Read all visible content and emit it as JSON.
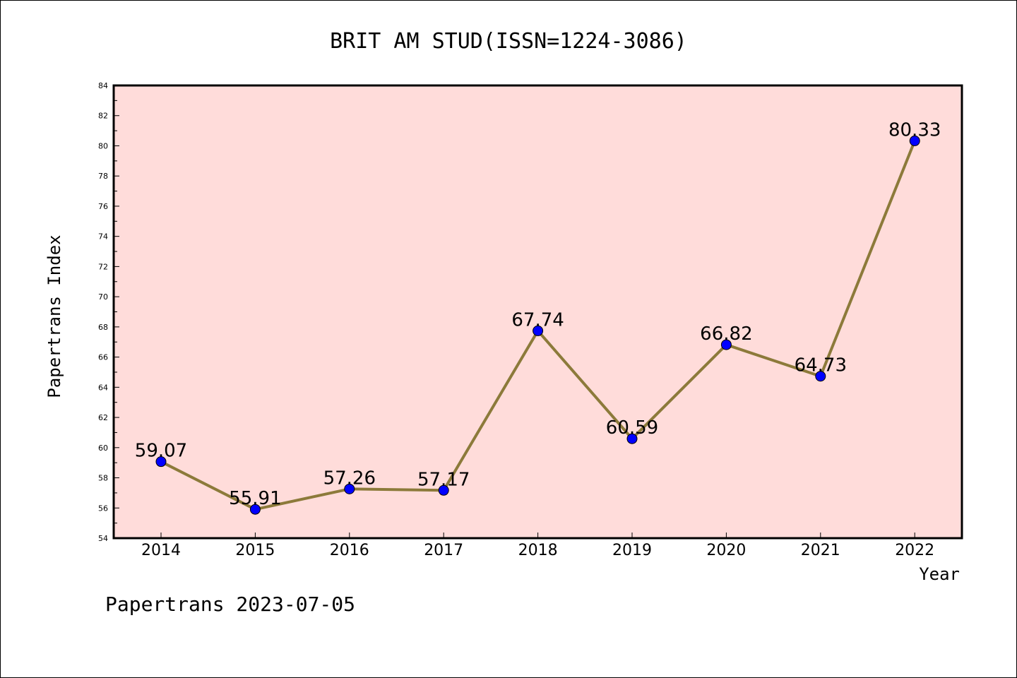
{
  "chart_data": {
    "type": "line",
    "title": "BRIT AM STUD(ISSN=1224-3086)",
    "xlabel": "Year",
    "ylabel": "Papertrans Index",
    "categories": [
      "2014",
      "2015",
      "2016",
      "2017",
      "2018",
      "2019",
      "2020",
      "2021",
      "2022"
    ],
    "values": [
      59.07,
      55.91,
      57.26,
      57.17,
      67.74,
      60.59,
      66.82,
      64.73,
      80.33
    ],
    "value_labels": [
      "59.07",
      "55.91",
      "57.26",
      "57.17",
      "67.74",
      "60.59",
      "66.82",
      "64.73",
      "80.33"
    ],
    "ylim": [
      54,
      84
    ],
    "yticks": [
      "54",
      "56",
      "58",
      "60",
      "62",
      "64",
      "66",
      "68",
      "70",
      "72",
      "74",
      "76",
      "78",
      "80",
      "82",
      "84"
    ],
    "grid": false,
    "legend": "none",
    "colors": {
      "plot_background": "#FFDCDA",
      "line": "#8C7A3A",
      "marker": "#0000FF"
    }
  },
  "footer": "Papertrans 2023-07-05"
}
